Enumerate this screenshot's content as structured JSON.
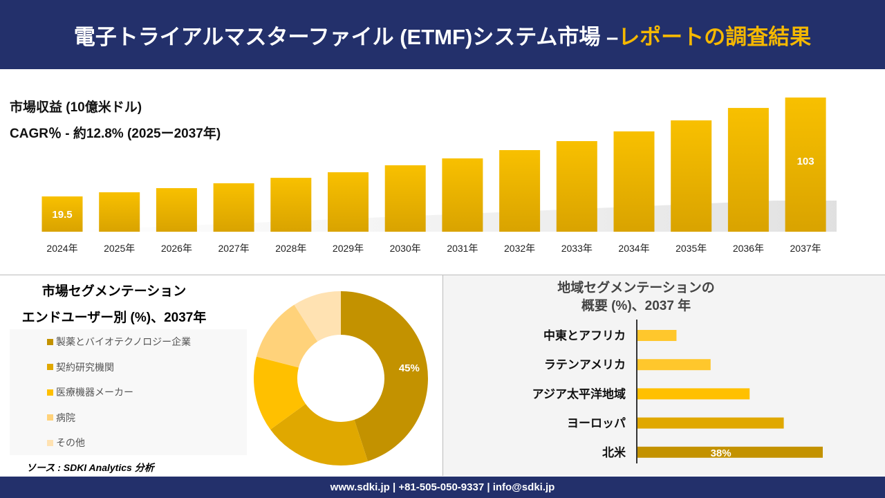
{
  "header": {
    "title_main": "電子トライアルマスターファイル (ETMF)システム市場 –",
    "title_highlight": "レポートの調査結果"
  },
  "colors": {
    "header_bg": "#23306b",
    "accent": "#f5b800",
    "bar": "#e0a800",
    "bar_top": "#f8c000"
  },
  "chart_data": [
    {
      "type": "bar",
      "title": "市場収益 (10億米ドル)",
      "subtitle": "CAGR％ - 約12.8% (2025ー2037年)",
      "categories": [
        "2024年",
        "2025年",
        "2026年",
        "2027年",
        "2028年",
        "2029年",
        "2030年",
        "2031年",
        "2032年",
        "2033年",
        "2034年",
        "2035年",
        "2036年",
        "2037年"
      ],
      "values": [
        19.5,
        23.0,
        26.5,
        30.6,
        35.2,
        39.9,
        45.8,
        51.6,
        58.6,
        66.2,
        74.4,
        83.7,
        94.2,
        103
      ],
      "data_labels": {
        "0": "19.5",
        "13": "103"
      },
      "grid": false
    },
    {
      "type": "pie",
      "title_line1": "市場セグメンテーション",
      "title_line2": "エンドユーザー別 (%)、2037年",
      "categories": [
        "製薬とバイオテクノロジー企業",
        "契約研究機関",
        "医療機器メーカー",
        "病院",
        "その他"
      ],
      "values": [
        45,
        20,
        14,
        12,
        9
      ],
      "colors": [
        "#c39200",
        "#e0a800",
        "#ffc000",
        "#ffd27a",
        "#ffe2b2"
      ],
      "data_labels": {
        "0": "45%"
      },
      "legend": "left",
      "donut": true
    },
    {
      "type": "bar",
      "orientation": "horizontal",
      "title": "地域セグメンテーションの\n概要 (%)、2037 年",
      "categories": [
        "中東とアフリカ",
        "ラテンアメリカ",
        "アジア太平洋地域",
        "ヨーロッパ",
        "北米"
      ],
      "values": [
        8,
        15,
        23,
        30,
        38
      ],
      "colors": [
        "#ffc72c",
        "#ffc72c",
        "#ffc000",
        "#e0a800",
        "#c39200"
      ],
      "data_labels": {
        "4": "38%"
      }
    }
  ],
  "source": "ソース : SDKI Analytics 分析",
  "footer": "www.sdki.jp | +81-505-050-9337 | info@sdki.jp"
}
